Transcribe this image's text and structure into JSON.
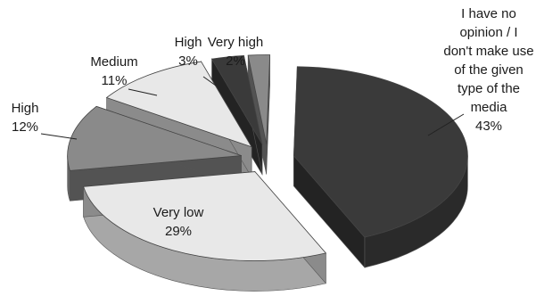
{
  "chart_data": {
    "type": "pie",
    "style": "exploded-3d",
    "colors": {
      "dark": "#3a3a3a",
      "mid": "#8a8a8a",
      "light": "#e8e8e8"
    },
    "slices": [
      {
        "label_lines": [
          "I have no",
          "opinion / I",
          "don't make use",
          "of the given",
          "type of the",
          "media",
          "43%"
        ],
        "value": 43,
        "shade": "dark"
      },
      {
        "label_lines": [
          "Very low",
          "29%"
        ],
        "value": 29,
        "shade": "light"
      },
      {
        "label_lines": [
          "High",
          "12%"
        ],
        "value": 12,
        "shade": "mid"
      },
      {
        "label_lines": [
          "Medium",
          "11%"
        ],
        "value": 11,
        "shade": "light"
      },
      {
        "label_lines": [
          "High",
          "3%"
        ],
        "value": 3,
        "shade": "dark"
      },
      {
        "label_lines": [
          "Very high",
          "2%"
        ],
        "value": 2,
        "shade": "mid"
      }
    ]
  }
}
